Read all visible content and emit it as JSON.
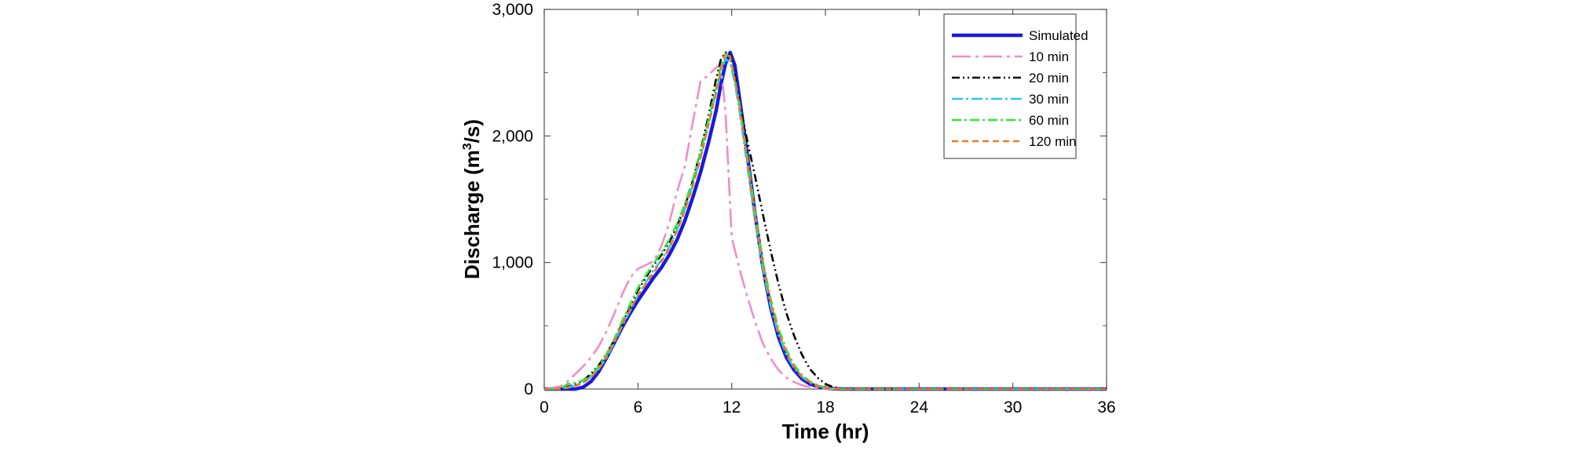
{
  "chart_data": {
    "type": "line",
    "title": "",
    "xlabel": "Time (hr)",
    "ylabel_main": "Discharge (m",
    "ylabel_sup": "3",
    "ylabel_tail": "/s)",
    "xlim": [
      0,
      36
    ],
    "ylim": [
      0,
      3000
    ],
    "xticks": [
      0,
      6,
      12,
      18,
      24,
      30,
      36
    ],
    "xtick_labels": [
      "0",
      "6",
      "12",
      "18",
      "24",
      "30",
      "36"
    ],
    "yticks": [
      0,
      1000,
      2000,
      3000
    ],
    "ytick_labels": [
      "0",
      "1,000",
      "2,000",
      "3,000"
    ],
    "grid": false,
    "legend_position": "top-right",
    "series": [
      {
        "name": "Simulated",
        "color": "#1a1adc",
        "dash": "solid",
        "x": [
          0,
          1,
          2,
          2.5,
          3,
          3.5,
          4,
          4.5,
          5,
          5.5,
          6,
          6.5,
          7,
          7.5,
          8,
          8.5,
          9,
          9.5,
          10,
          10.5,
          11,
          11.3,
          11.6,
          11.9,
          12.2,
          12.5,
          13,
          13.5,
          14,
          14.5,
          15,
          15.5,
          16,
          16.5,
          17,
          17.5,
          18,
          18.5,
          19,
          20,
          24,
          30,
          36
        ],
        "y": [
          0,
          0,
          0,
          15,
          60,
          140,
          250,
          370,
          490,
          600,
          700,
          790,
          880,
          960,
          1060,
          1180,
          1330,
          1510,
          1710,
          1940,
          2200,
          2400,
          2570,
          2660,
          2560,
          2300,
          1850,
          1380,
          960,
          640,
          410,
          250,
          150,
          80,
          40,
          20,
          8,
          3,
          0,
          0,
          0,
          0,
          0
        ]
      },
      {
        "name": "10 min",
        "color": "#f08cc8",
        "dash": "24,6,4,6",
        "x": [
          0,
          1,
          1.5,
          2,
          2.5,
          3,
          3.5,
          4,
          4.5,
          5,
          5.5,
          6,
          6.5,
          7,
          7.5,
          8,
          8.5,
          9,
          9.5,
          10,
          10.5,
          11,
          11.3,
          11.6,
          12,
          12.5,
          13,
          13.5,
          14,
          14.5,
          15,
          15.5,
          16,
          16.5,
          17,
          17.5,
          18,
          19,
          20,
          24,
          30,
          36
        ],
        "y": [
          0,
          20,
          60,
          120,
          180,
          250,
          340,
          460,
          600,
          750,
          880,
          950,
          980,
          1010,
          1130,
          1310,
          1560,
          1760,
          2100,
          2430,
          2480,
          2540,
          2560,
          2200,
          1200,
          950,
          730,
          530,
          360,
          240,
          150,
          90,
          55,
          30,
          15,
          8,
          3,
          0,
          0,
          0,
          0,
          0
        ]
      },
      {
        "name": "20 min",
        "color": "#000000",
        "dash": "10,4,2,4,2,4",
        "x": [
          0,
          1,
          1.5,
          2,
          2.5,
          3,
          3.5,
          4,
          4.5,
          5,
          5.5,
          6,
          6.5,
          7,
          7.5,
          8,
          8.5,
          9,
          9.5,
          10,
          10.5,
          11,
          11.3,
          11.6,
          11.9,
          12.2,
          12.5,
          13,
          13.5,
          14,
          14.5,
          15,
          15.5,
          16,
          16.5,
          17,
          17.5,
          18,
          18.5,
          19,
          20,
          24,
          30,
          36
        ],
        "y": [
          0,
          0,
          20,
          35,
          70,
          120,
          190,
          280,
          390,
          520,
          650,
          780,
          880,
          980,
          1060,
          1160,
          1290,
          1440,
          1640,
          1880,
          2150,
          2450,
          2600,
          2660,
          2640,
          2480,
          2250,
          1960,
          1680,
          1380,
          1090,
          830,
          600,
          420,
          270,
          160,
          90,
          40,
          15,
          5,
          0,
          0,
          0,
          0
        ]
      },
      {
        "name": "30 min",
        "color": "#28c8f0",
        "dash": "14,4,3,4",
        "x": [
          0,
          1,
          1.5,
          2,
          2.5,
          3,
          3.5,
          4,
          4.5,
          5,
          5.5,
          6,
          6.5,
          7,
          7.5,
          8,
          8.5,
          9,
          9.5,
          10,
          10.5,
          11,
          11.3,
          11.6,
          11.9,
          12.2,
          12.5,
          13,
          13.5,
          14,
          14.5,
          15,
          15.5,
          16,
          16.5,
          17,
          17.5,
          18,
          19,
          20,
          24,
          30,
          36
        ],
        "y": [
          0,
          0,
          15,
          30,
          55,
          100,
          160,
          250,
          370,
          500,
          620,
          740,
          840,
          940,
          1020,
          1120,
          1260,
          1420,
          1610,
          1830,
          2080,
          2350,
          2490,
          2610,
          2580,
          2420,
          2200,
          1760,
          1320,
          940,
          650,
          430,
          270,
          165,
          95,
          50,
          25,
          10,
          0,
          0,
          0,
          0,
          0
        ]
      },
      {
        "name": "60 min",
        "color": "#2de82d",
        "dash": "12,4,3,4",
        "x": [
          0,
          1,
          1.5,
          2,
          2.5,
          3,
          3.5,
          4,
          4.5,
          5,
          5.5,
          6,
          6.5,
          7,
          7.5,
          8,
          8.5,
          9,
          9.5,
          10,
          10.5,
          11,
          11.3,
          11.6,
          11.9,
          12.2,
          12.5,
          13,
          13.5,
          14,
          14.5,
          15,
          15.5,
          16,
          16.5,
          17,
          17.5,
          18,
          19,
          20,
          24,
          30,
          36
        ],
        "y": [
          0,
          0,
          40,
          50,
          70,
          110,
          180,
          280,
          400,
          540,
          670,
          800,
          900,
          990,
          1080,
          1180,
          1310,
          1460,
          1650,
          1870,
          2120,
          2380,
          2550,
          2650,
          2620,
          2450,
          2250,
          1830,
          1400,
          1010,
          710,
          480,
          310,
          190,
          110,
          60,
          30,
          12,
          0,
          0,
          0,
          0,
          0
        ]
      },
      {
        "name": "120 min",
        "color": "#f07828",
        "dash": "8,5",
        "x": [
          0,
          1,
          1.5,
          2,
          2.5,
          3,
          3.5,
          4,
          4.5,
          5,
          5.5,
          6,
          6.5,
          7,
          7.5,
          8,
          8.5,
          9,
          9.5,
          10,
          10.5,
          11,
          11.3,
          11.6,
          11.9,
          12.2,
          12.5,
          13,
          13.5,
          14,
          14.5,
          15,
          15.5,
          16,
          16.5,
          17,
          17.5,
          18,
          19,
          20,
          24,
          30,
          36
        ],
        "y": [
          0,
          0,
          10,
          25,
          50,
          95,
          160,
          260,
          380,
          510,
          630,
          740,
          830,
          920,
          1010,
          1110,
          1250,
          1410,
          1600,
          1820,
          2080,
          2340,
          2520,
          2650,
          2630,
          2440,
          2230,
          1800,
          1360,
          980,
          680,
          450,
          290,
          175,
          100,
          55,
          25,
          10,
          0,
          0,
          0,
          0,
          0
        ]
      }
    ]
  }
}
